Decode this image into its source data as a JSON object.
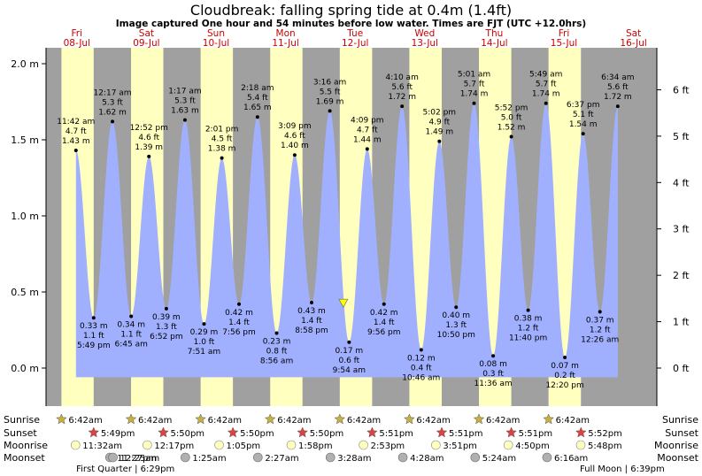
{
  "header": {
    "title": "Cloudbreak: falling  spring tide at 0.4m (1.4ft)",
    "subtitle": "Image captured One hour and 54 minutes before low water. Times are FJT (UTC +12.0hrs)"
  },
  "days": [
    {
      "name": "Fri",
      "date": "08-Jul"
    },
    {
      "name": "Sat",
      "date": "09-Jul"
    },
    {
      "name": "Sun",
      "date": "10-Jul"
    },
    {
      "name": "Mon",
      "date": "11-Jul"
    },
    {
      "name": "Tue",
      "date": "12-Jul"
    },
    {
      "name": "Wed",
      "date": "13-Jul"
    },
    {
      "name": "Thu",
      "date": "14-Jul"
    },
    {
      "name": "Fri",
      "date": "15-Jul"
    },
    {
      "name": "Sat",
      "date": "16-Jul"
    }
  ],
  "chart_data": {
    "type": "area",
    "y_unit_left": "m",
    "y_unit_right": "ft",
    "ylim_m": [
      -0.1,
      2.1
    ],
    "left_ticks": [
      "0.0 m",
      "0.5 m",
      "1.0 m",
      "1.5 m",
      "2.0 m"
    ],
    "right_ticks": [
      "0 ft",
      "1 ft",
      "2 ft",
      "3 ft",
      "4 ft",
      "5 ft",
      "6 ft"
    ],
    "tides": [
      {
        "t": 0.487,
        "h": 1.43,
        "labels": [
          "11:42 am",
          "4.7 ft",
          "1.43 m"
        ],
        "type": "high"
      },
      {
        "t": 0.742,
        "h": 0.33,
        "labels": [
          "0.33 m",
          "1.1 ft",
          "5:49 pm"
        ],
        "type": "low"
      },
      {
        "t": 1.012,
        "h": 1.62,
        "labels": [
          "12:17 am",
          "5.3 ft",
          "1.62 m"
        ],
        "type": "high"
      },
      {
        "t": 1.281,
        "h": 0.34,
        "labels": [
          "0.34 m",
          "1.1 ft",
          "6:45 am"
        ],
        "type": "low"
      },
      {
        "t": 1.536,
        "h": 1.39,
        "labels": [
          "12:52 pm",
          "4.6 ft",
          "1.39 m"
        ],
        "type": "high"
      },
      {
        "t": 1.786,
        "h": 0.39,
        "labels": [
          "0.39 m",
          "1.3 ft",
          "6:52 pm"
        ],
        "type": "low"
      },
      {
        "t": 2.054,
        "h": 1.63,
        "labels": [
          "1:17 am",
          "5.3 ft",
          "1.63 m"
        ],
        "type": "high"
      },
      {
        "t": 2.328,
        "h": 0.29,
        "labels": [
          "0.29 m",
          "1.0 ft",
          "7:51 am"
        ],
        "type": "low"
      },
      {
        "t": 2.584,
        "h": 1.38,
        "labels": [
          "2:01 pm",
          "4.5 ft",
          "1.38 m"
        ],
        "type": "high"
      },
      {
        "t": 2.831,
        "h": 0.42,
        "labels": [
          "0.42 m",
          "1.4 ft",
          "7:56 pm"
        ],
        "type": "low"
      },
      {
        "t": 3.096,
        "h": 1.65,
        "labels": [
          "2:18 am",
          "5.4 ft",
          "1.65 m"
        ],
        "type": "high"
      },
      {
        "t": 3.372,
        "h": 0.23,
        "labels": [
          "0.23 m",
          "0.8 ft",
          "8:56 am"
        ],
        "type": "low"
      },
      {
        "t": 3.631,
        "h": 1.4,
        "labels": [
          "3:09 pm",
          "4.6 ft",
          "1.40 m"
        ],
        "type": "high"
      },
      {
        "t": 3.874,
        "h": 0.43,
        "labels": [
          "0.43 m",
          "1.4 ft",
          "8:58 pm"
        ],
        "type": "low"
      },
      {
        "t": 4.136,
        "h": 1.69,
        "labels": [
          "3:16 am",
          "5.5 ft",
          "1.69 m"
        ],
        "type": "high"
      },
      {
        "t": 4.413,
        "h": 0.17,
        "labels": [
          "0.17 m",
          "0.6 ft",
          "9:54 am"
        ],
        "type": "low"
      },
      {
        "t": 4.673,
        "h": 1.44,
        "labels": [
          "4:09 pm",
          "4.7 ft",
          "1.44 m"
        ],
        "type": "high"
      },
      {
        "t": 4.914,
        "h": 0.42,
        "labels": [
          "0.42 m",
          "1.4 ft",
          "9:56 pm"
        ],
        "type": "low"
      },
      {
        "t": 5.174,
        "h": 1.72,
        "labels": [
          "4:10 am",
          "5.6 ft",
          "1.72 m"
        ],
        "type": "high"
      },
      {
        "t": 5.449,
        "h": 0.12,
        "labels": [
          "0.12 m",
          "0.4 ft",
          "10:46 am"
        ],
        "type": "low"
      },
      {
        "t": 5.71,
        "h": 1.49,
        "labels": [
          "5:02 pm",
          "4.9 ft",
          "1.49 m"
        ],
        "type": "high"
      },
      {
        "t": 5.951,
        "h": 0.4,
        "labels": [
          "0.40 m",
          "1.3 ft",
          "10:50 pm"
        ],
        "type": "low"
      },
      {
        "t": 6.209,
        "h": 1.74,
        "labels": [
          "5:01 am",
          "5.7 ft",
          "1.74 m"
        ],
        "type": "high"
      },
      {
        "t": 6.483,
        "h": 0.08,
        "labels": [
          "0.08 m",
          "0.3 ft",
          "11:36 am"
        ],
        "type": "low"
      },
      {
        "t": 6.744,
        "h": 1.52,
        "labels": [
          "5:52 pm",
          "5.0 ft",
          "1.52 m"
        ],
        "type": "high"
      },
      {
        "t": 6.986,
        "h": 0.38,
        "labels": [
          "0.38 m",
          "1.2 ft",
          "11:40 pm"
        ],
        "type": "low"
      },
      {
        "t": 7.242,
        "h": 1.74,
        "labels": [
          "5:49 am",
          "5.7 ft",
          "1.74 m"
        ],
        "type": "high"
      },
      {
        "t": 7.514,
        "h": 0.07,
        "labels": [
          "0.07 m",
          "0.2 ft",
          "12:20 pm"
        ],
        "type": "low"
      },
      {
        "t": 7.776,
        "h": 1.54,
        "labels": [
          "6:37 pm",
          "5.1 ft",
          "1.54 m"
        ],
        "type": "high"
      },
      {
        "t": 8.018,
        "h": 0.37,
        "labels": [
          "0.37 m",
          "1.2 ft",
          "12:26 am"
        ],
        "type": "low"
      },
      {
        "t": 8.274,
        "h": 1.72,
        "labels": [
          "6:34 am",
          "5.6 ft",
          "1.72 m"
        ],
        "type": "high"
      }
    ],
    "current": {
      "t": 4.33,
      "h": 0.4
    }
  },
  "sun_moon": {
    "row_labels": [
      "Sunrise",
      "Sunset",
      "Moonrise",
      "Moonset"
    ],
    "sunrise": [
      {
        "t": 0.279,
        "label": "6:42am"
      },
      {
        "t": 1.279,
        "label": "6:42am"
      },
      {
        "t": 2.279,
        "label": "6:42am"
      },
      {
        "t": 3.279,
        "label": "6:42am"
      },
      {
        "t": 4.279,
        "label": "6:42am"
      },
      {
        "t": 5.279,
        "label": "6:42am"
      },
      {
        "t": 6.279,
        "label": "6:42am"
      },
      {
        "t": 7.279,
        "label": "6:42am"
      }
    ],
    "sunset": [
      {
        "t": 0.742,
        "label": "5:49pm"
      },
      {
        "t": 1.743,
        "label": "5:50pm"
      },
      {
        "t": 2.743,
        "label": "5:50pm"
      },
      {
        "t": 3.743,
        "label": "5:50pm"
      },
      {
        "t": 4.744,
        "label": "5:51pm"
      },
      {
        "t": 5.744,
        "label": "5:51pm"
      },
      {
        "t": 6.744,
        "label": "5:51pm"
      },
      {
        "t": 7.745,
        "label": "5:52pm"
      }
    ],
    "moonrise": [
      {
        "t": 0.481,
        "label": "11:32am"
      },
      {
        "t": 1.512,
        "label": "12:17pm"
      },
      {
        "t": 2.545,
        "label": "1:05pm"
      },
      {
        "t": 3.582,
        "label": "1:58pm"
      },
      {
        "t": 4.62,
        "label": "2:53pm"
      },
      {
        "t": 5.66,
        "label": "3:51pm"
      },
      {
        "t": 6.701,
        "label": "4:50pm"
      },
      {
        "t": 7.742,
        "label": "5:48pm"
      }
    ],
    "moonset": [
      {
        "t": 0.977,
        "label": "11:27pm"
      },
      {
        "t": 2.059,
        "label": "1:25am"
      },
      {
        "t": 3.102,
        "label": "2:27am"
      },
      {
        "t": 4.144,
        "label": "3:28am"
      },
      {
        "t": 5.186,
        "label": "4:28am"
      },
      {
        "t": 6.225,
        "label": "5:24am"
      },
      {
        "t": 7.258,
        "label": "6:16am"
      }
    ],
    "moonset_extra": {
      "t": 1.018,
      "label": "12:25am"
    },
    "phases": [
      {
        "t": 0.3,
        "label": "First Quarter | 6:29pm"
      },
      {
        "t": 7.5,
        "label": "Full Moon | 6:39pm"
      }
    ]
  },
  "colors": {
    "night": "#a0a0a0",
    "day": "#ffffc0",
    "water": "#a0b0ff",
    "day_label": "#cc0000",
    "marker": "#ffff00",
    "sunrise_star": "#c8b040",
    "sunset_star": "#e04040",
    "moon_light": "#ffffc0",
    "moon_dark": "#b0b0b0"
  }
}
